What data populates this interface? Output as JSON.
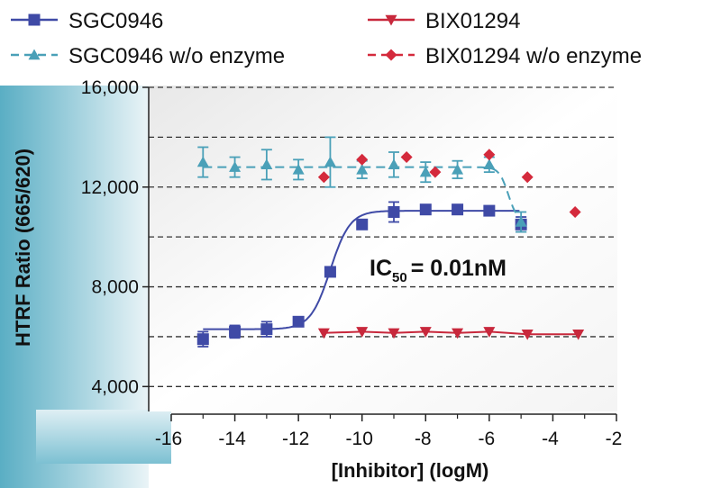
{
  "chart_data": {
    "type": "scatter",
    "xlabel": "[Inhibitor] (logM)",
    "ylabel": "HTRF Ratio (665/620)",
    "xlim": [
      -16,
      -2
    ],
    "ylim": [
      3000,
      16000
    ],
    "x_ticks": [
      "-16",
      "-14",
      "-12",
      "-10",
      "-8",
      "-6",
      "-4",
      "-2"
    ],
    "y_ticks": [
      "4,000",
      "8,000",
      "12,000",
      "16,000"
    ],
    "grid": true,
    "legend_position": "top",
    "annotation": {
      "label": "IC",
      "subscript": "50",
      "text": "= 0.01nM"
    },
    "series": [
      {
        "name": "SGC0946",
        "color": "#3f4aa6",
        "marker": "square",
        "line": "solid",
        "x": [
          -15,
          -14,
          -13,
          -12,
          -11,
          -10,
          -9,
          -8,
          -7,
          -6,
          -5
        ],
        "y": [
          5900,
          6200,
          6300,
          6600,
          8600,
          10500,
          11000,
          11100,
          11100,
          11050,
          10500
        ],
        "err": [
          300,
          250,
          300,
          150,
          150,
          150,
          400,
          100,
          100,
          100,
          300
        ]
      },
      {
        "name": "SGC0946 w/o enzyme",
        "color": "#4aa0b8",
        "marker": "triangle-up",
        "line": "dashed",
        "x": [
          -15,
          -14,
          -13,
          -12,
          -11,
          -10,
          -9,
          -8,
          -7,
          -6,
          -5
        ],
        "y": [
          13000,
          12800,
          12900,
          12700,
          13000,
          12700,
          12900,
          12600,
          12700,
          12900,
          10600
        ],
        "err": [
          600,
          400,
          600,
          400,
          1000,
          350,
          500,
          400,
          350,
          300,
          400
        ]
      },
      {
        "name": "BIX01294",
        "color": "#c8283c",
        "marker": "triangle-down",
        "line": "solid",
        "x": [
          -11.2,
          -10,
          -9,
          -8,
          -7,
          -6,
          -4.8,
          -3.2
        ],
        "y": [
          6150,
          6200,
          6150,
          6200,
          6150,
          6200,
          6100,
          6100
        ]
      },
      {
        "name": "BIX01294 w/o enzyme",
        "color": "#d42a3c",
        "marker": "diamond",
        "line": "none",
        "x": [
          -11.2,
          -10,
          -8.6,
          -7.7,
          -6,
          -4.8,
          -3.3
        ],
        "y": [
          12400,
          13100,
          13200,
          12600,
          13300,
          12400,
          11000
        ]
      }
    ]
  }
}
